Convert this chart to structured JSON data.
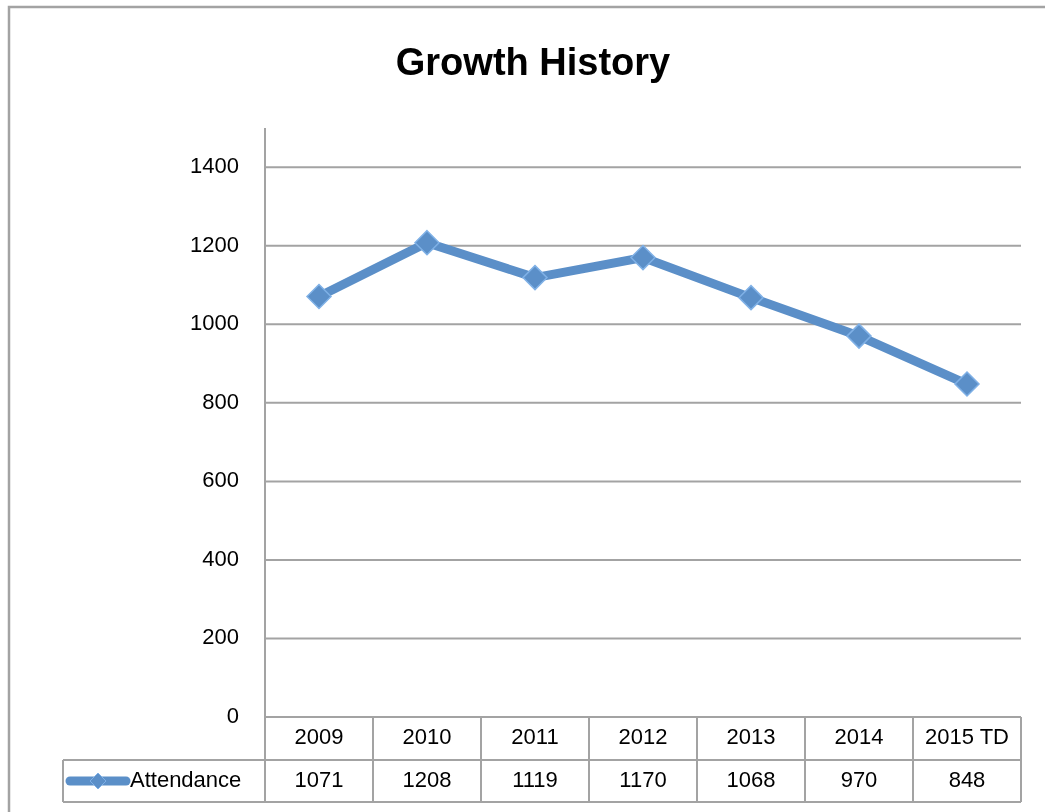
{
  "chart_data": {
    "type": "line",
    "title": "Growth History",
    "categories": [
      "2009",
      "2010",
      "2011",
      "2012",
      "2013",
      "2014",
      "2015 TD"
    ],
    "series": [
      {
        "name": "Attendance",
        "color": "#5b8fc8",
        "values": [
          1071,
          1208,
          1119,
          1170,
          1068,
          970,
          848
        ]
      }
    ],
    "ylim": [
      0,
      1500
    ],
    "yticks": [
      0,
      200,
      400,
      600,
      800,
      1000,
      1200,
      1400
    ],
    "grid": "y",
    "marker": "diamond",
    "line_style": "solid",
    "legend": "bottom",
    "data_labels": true
  }
}
